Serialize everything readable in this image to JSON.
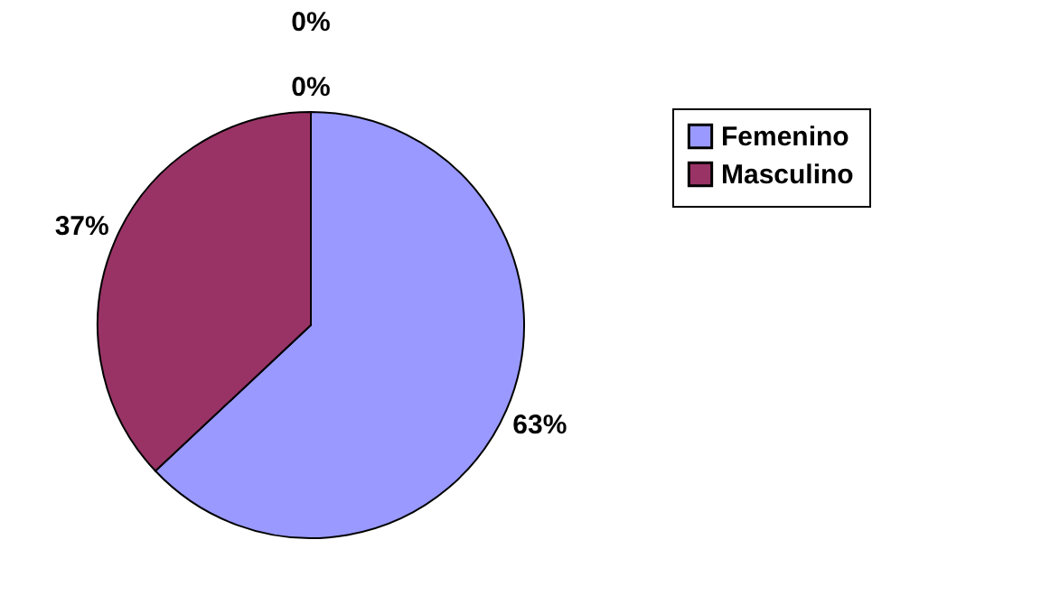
{
  "chart_data": {
    "type": "pie",
    "categories": [
      "Femenino",
      "Masculino",
      null,
      null
    ],
    "values": [
      63,
      37,
      0,
      0
    ],
    "colors": [
      "#9999ff",
      "#993366",
      "#ffffcc",
      "#ccffff"
    ],
    "value_labels": [
      "63%",
      "37%",
      "0%",
      "0%"
    ],
    "legend": "right"
  }
}
